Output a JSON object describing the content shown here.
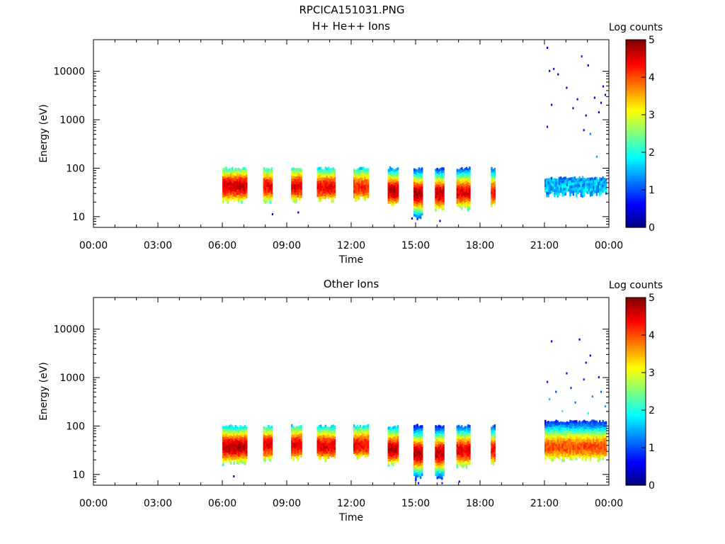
{
  "figure": {
    "title": "RPCICA151031.PNG",
    "colors": {
      "frame": "#000000",
      "background": "#ffffff"
    }
  },
  "chart_data": [
    {
      "type": "heatmap",
      "title": "H+ He++ Ions",
      "xlabel": "Time",
      "ylabel": "Energy (eV)",
      "x_ticks": [
        "00:00",
        "03:00",
        "06:00",
        "09:00",
        "12:00",
        "15:00",
        "18:00",
        "21:00",
        "00:00"
      ],
      "x_range_hours": [
        0,
        24
      ],
      "y_scale": "log",
      "y_ticks": [
        "10",
        "100",
        "1000",
        "10000"
      ],
      "y_tick_values": [
        10,
        100,
        1000,
        10000
      ],
      "y_range": [
        6,
        45000
      ],
      "colorbar": {
        "label": "Log counts",
        "range": [
          0,
          5
        ],
        "ticks": [
          "0",
          "1",
          "2",
          "3",
          "4",
          "5"
        ],
        "colormap": "jet"
      },
      "segments": [
        {
          "start": 6.0,
          "end": 7.1,
          "emin": 18,
          "emax": 95,
          "peak_e": 40,
          "peak": 4.6
        },
        {
          "start": 7.9,
          "end": 8.3,
          "emin": 18,
          "emax": 95,
          "peak_e": 40,
          "peak": 4.4
        },
        {
          "start": 9.2,
          "end": 9.7,
          "emin": 19,
          "emax": 95,
          "peak_e": 40,
          "peak": 4.5
        },
        {
          "start": 10.4,
          "end": 11.2,
          "emin": 19,
          "emax": 95,
          "peak_e": 38,
          "peak": 4.4
        },
        {
          "start": 12.1,
          "end": 12.8,
          "emin": 20,
          "emax": 95,
          "peak_e": 38,
          "peak": 4.2
        },
        {
          "start": 13.7,
          "end": 14.2,
          "emin": 15,
          "emax": 95,
          "peak_e": 32,
          "peak": 4.7
        },
        {
          "start": 14.9,
          "end": 15.3,
          "emin": 8,
          "emax": 95,
          "peak_e": 28,
          "peak": 4.8
        },
        {
          "start": 15.9,
          "end": 16.3,
          "emin": 12,
          "emax": 95,
          "peak_e": 28,
          "peak": 4.7
        },
        {
          "start": 16.9,
          "end": 17.5,
          "emin": 13,
          "emax": 95,
          "peak_e": 30,
          "peak": 4.5
        },
        {
          "start": 18.5,
          "end": 18.7,
          "emin": 15,
          "emax": 95,
          "peak_e": 30,
          "peak": 4.3
        },
        {
          "start": 21.0,
          "end": 23.9,
          "emin": 25,
          "emax": 60,
          "peak_e": 35,
          "peak": 1.6
        }
      ],
      "scatter": [
        {
          "t": 21.1,
          "e": 30000,
          "v": 0.6
        },
        {
          "t": 21.2,
          "e": 10000,
          "v": 0.5
        },
        {
          "t": 21.4,
          "e": 11000,
          "v": 0.7
        },
        {
          "t": 21.6,
          "e": 8500,
          "v": 0.4
        },
        {
          "t": 22.0,
          "e": 4500,
          "v": 0.5
        },
        {
          "t": 22.3,
          "e": 1700,
          "v": 0.6
        },
        {
          "t": 22.7,
          "e": 20000,
          "v": 0.8
        },
        {
          "t": 23.0,
          "e": 13000,
          "v": 0.5
        },
        {
          "t": 23.3,
          "e": 2800,
          "v": 0.6
        },
        {
          "t": 23.6,
          "e": 2200,
          "v": 0.4
        },
        {
          "t": 23.8,
          "e": 3200,
          "v": 0.5
        },
        {
          "t": 21.1,
          "e": 700,
          "v": 0.7
        },
        {
          "t": 22.5,
          "e": 2600,
          "v": 0.6
        },
        {
          "t": 22.9,
          "e": 1200,
          "v": 0.5
        },
        {
          "t": 23.1,
          "e": 500,
          "v": 1.2
        },
        {
          "t": 23.4,
          "e": 170,
          "v": 1.4
        },
        {
          "t": 23.5,
          "e": 1400,
          "v": 0.5
        },
        {
          "t": 21.3,
          "e": 2000,
          "v": 0.5
        },
        {
          "t": 22.8,
          "e": 600,
          "v": 0.7
        },
        {
          "t": 23.7,
          "e": 4800,
          "v": 0.6
        },
        {
          "t": 8.3,
          "e": 11,
          "v": 0.6
        },
        {
          "t": 9.5,
          "e": 12,
          "v": 0.6
        },
        {
          "t": 16.1,
          "e": 8,
          "v": 0.6
        },
        {
          "t": 14.8,
          "e": 9,
          "v": 0.5
        }
      ]
    },
    {
      "type": "heatmap",
      "title": "Other Ions",
      "xlabel": "Time",
      "ylabel": "Energy (eV)",
      "x_ticks": [
        "00:00",
        "03:00",
        "06:00",
        "09:00",
        "12:00",
        "15:00",
        "18:00",
        "21:00",
        "00:00"
      ],
      "x_range_hours": [
        0,
        24
      ],
      "y_scale": "log",
      "y_ticks": [
        "10",
        "100",
        "1000",
        "10000"
      ],
      "y_tick_values": [
        10,
        100,
        1000,
        10000
      ],
      "y_range": [
        6,
        45000
      ],
      "colorbar": {
        "label": "Log counts",
        "range": [
          0,
          5
        ],
        "ticks": [
          "0",
          "1",
          "2",
          "3",
          "4",
          "5"
        ],
        "colormap": "jet"
      },
      "segments": [
        {
          "start": 6.0,
          "end": 7.1,
          "emin": 15,
          "emax": 95,
          "peak_e": 35,
          "peak": 4.7
        },
        {
          "start": 7.9,
          "end": 8.3,
          "emin": 18,
          "emax": 95,
          "peak_e": 38,
          "peak": 4.5
        },
        {
          "start": 9.2,
          "end": 9.7,
          "emin": 19,
          "emax": 95,
          "peak_e": 38,
          "peak": 4.5
        },
        {
          "start": 10.4,
          "end": 11.2,
          "emin": 18,
          "emax": 95,
          "peak_e": 36,
          "peak": 4.5
        },
        {
          "start": 12.1,
          "end": 12.8,
          "emin": 20,
          "emax": 95,
          "peak_e": 38,
          "peak": 4.4
        },
        {
          "start": 13.7,
          "end": 14.2,
          "emin": 14,
          "emax": 95,
          "peak_e": 32,
          "peak": 4.7
        },
        {
          "start": 14.9,
          "end": 15.3,
          "emin": 7,
          "emax": 95,
          "peak_e": 26,
          "peak": 4.8
        },
        {
          "start": 15.9,
          "end": 16.3,
          "emin": 7,
          "emax": 95,
          "peak_e": 26,
          "peak": 4.7
        },
        {
          "start": 16.9,
          "end": 17.5,
          "emin": 12,
          "emax": 95,
          "peak_e": 30,
          "peak": 4.5
        },
        {
          "start": 18.5,
          "end": 18.7,
          "emin": 15,
          "emax": 95,
          "peak_e": 30,
          "peak": 4.3
        },
        {
          "start": 21.0,
          "end": 23.9,
          "emin": 18,
          "emax": 120,
          "peak_e": 35,
          "peak": 4.0
        }
      ],
      "scatter": [
        {
          "t": 21.3,
          "e": 5500,
          "v": 0.5
        },
        {
          "t": 22.6,
          "e": 6000,
          "v": 0.6
        },
        {
          "t": 23.1,
          "e": 2800,
          "v": 0.5
        },
        {
          "t": 21.1,
          "e": 800,
          "v": 0.8
        },
        {
          "t": 21.5,
          "e": 500,
          "v": 1.0
        },
        {
          "t": 22.0,
          "e": 1200,
          "v": 0.7
        },
        {
          "t": 22.4,
          "e": 300,
          "v": 1.2
        },
        {
          "t": 22.8,
          "e": 900,
          "v": 0.8
        },
        {
          "t": 23.2,
          "e": 400,
          "v": 1.3
        },
        {
          "t": 23.5,
          "e": 1000,
          "v": 0.7
        },
        {
          "t": 23.8,
          "e": 250,
          "v": 1.4
        },
        {
          "t": 21.8,
          "e": 200,
          "v": 1.8
        },
        {
          "t": 22.2,
          "e": 600,
          "v": 0.9
        },
        {
          "t": 23.0,
          "e": 180,
          "v": 2.0
        },
        {
          "t": 23.6,
          "e": 500,
          "v": 1.1
        },
        {
          "t": 21.2,
          "e": 350,
          "v": 1.6
        },
        {
          "t": 22.9,
          "e": 2000,
          "v": 0.6
        },
        {
          "t": 6.5,
          "e": 9,
          "v": 0.6
        },
        {
          "t": 15.1,
          "e": 6.5,
          "v": 0.7
        },
        {
          "t": 16.2,
          "e": 6.5,
          "v": 0.8
        },
        {
          "t": 17.0,
          "e": 7,
          "v": 0.6
        }
      ]
    }
  ]
}
